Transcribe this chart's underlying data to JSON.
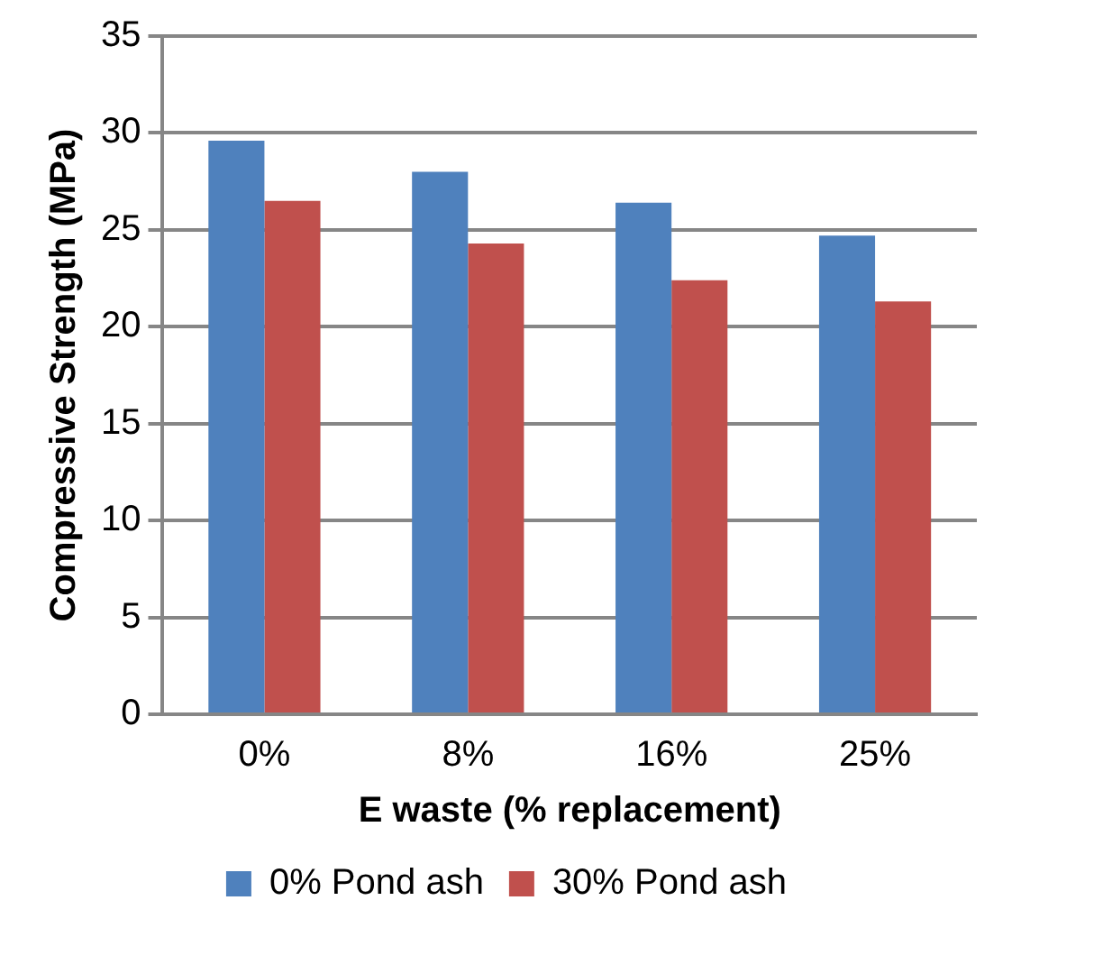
{
  "chart_data": {
    "type": "bar",
    "xlabel": "E waste (% replacement)",
    "ylabel": "Compressive Strength (MPa)",
    "categories": [
      "0%",
      "8%",
      "16%",
      "25%"
    ],
    "series": [
      {
        "name": "0% Pond ash",
        "color": "#4f81bd",
        "values": [
          29.6,
          28.0,
          26.4,
          24.7
        ]
      },
      {
        "name": "30% Pond ash",
        "color": "#c0504d",
        "values": [
          26.5,
          24.3,
          22.4,
          21.3
        ]
      }
    ],
    "ylim": [
      0,
      35
    ],
    "yticks": [
      0,
      5,
      10,
      15,
      20,
      25,
      30,
      35
    ],
    "grid": "y",
    "legend": "bottom"
  }
}
